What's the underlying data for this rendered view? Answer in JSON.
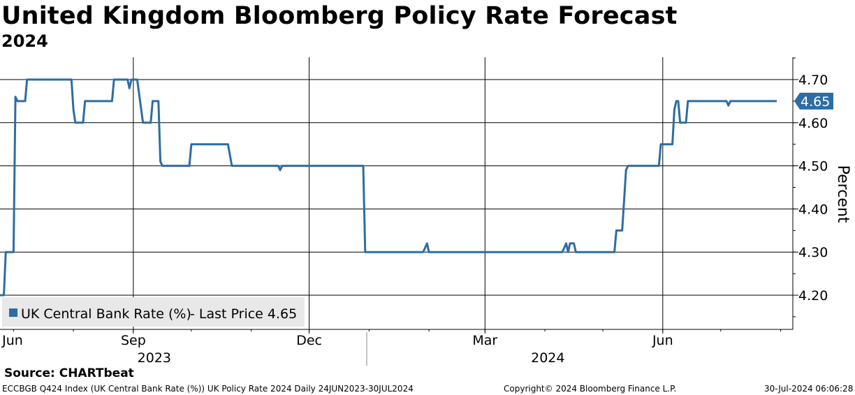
{
  "header": {
    "title": "United Kingdom Bloomberg Policy Rate Forecast",
    "subtitle": "2024"
  },
  "legend": {
    "series_label": "UK Central Bank Rate (%)",
    "price_text": "- Last Price 4.65"
  },
  "footer": {
    "source": "Source:  CHARTbeat",
    "index_info": "ECCBGB Q424 Index (UK Central Bank Rate (%)) UK Policy Rate 2024  Daily 24JUN2023-30JUL2024",
    "copyright": "Copyright© 2024 Bloomberg Finance L.P.",
    "timestamp": "30-Jul-2024 06:06:28"
  },
  "colors": {
    "series": "#2e6ca4",
    "grid": "#000000"
  },
  "chart_data": {
    "type": "line",
    "title": "United Kingdom Bloomberg Policy Rate Forecast",
    "subtitle": "2024",
    "xlabel": "",
    "ylabel": "Percent",
    "x_start": "2023-06-24",
    "x_end": "2024-07-30",
    "ylim": [
      4.12,
      4.75
    ],
    "y_ticks": [
      4.2,
      4.3,
      4.4,
      4.5,
      4.6,
      4.7
    ],
    "y_tick_labels": [
      "4.20",
      "4.30",
      "4.40",
      "4.50",
      "4.60",
      "4.70"
    ],
    "x_ticks": [
      {
        "label": "Jun",
        "date": "2023-06-01"
      },
      {
        "label": "Sep",
        "date": "2023-09-01"
      },
      {
        "label": "Dec",
        "date": "2023-12-01"
      },
      {
        "label": "Mar",
        "date": "2024-03-01"
      },
      {
        "label": "Jun",
        "date": "2024-06-01"
      }
    ],
    "year_labels": [
      {
        "label": "2023",
        "date": "2023-09-01"
      },
      {
        "label": "2024",
        "date": "2024-03-01"
      }
    ],
    "last_value": 4.65,
    "last_value_label": "4.65",
    "series": [
      {
        "name": "UK Central Bank Rate (%)",
        "points": [
          [
            "2023-06-24",
            4.2
          ],
          [
            "2023-06-26",
            4.2
          ],
          [
            "2023-06-27",
            4.3
          ],
          [
            "2023-07-01",
            4.3
          ],
          [
            "2023-07-02",
            4.66
          ],
          [
            "2023-07-03",
            4.65
          ],
          [
            "2023-07-07",
            4.65
          ],
          [
            "2023-07-08",
            4.7
          ],
          [
            "2023-07-31",
            4.7
          ],
          [
            "2023-08-01",
            4.63
          ],
          [
            "2023-08-02",
            4.6
          ],
          [
            "2023-08-06",
            4.6
          ],
          [
            "2023-08-07",
            4.65
          ],
          [
            "2023-08-21",
            4.65
          ],
          [
            "2023-08-22",
            4.7
          ],
          [
            "2023-08-29",
            4.7
          ],
          [
            "2023-08-30",
            4.68
          ],
          [
            "2023-08-31",
            4.7
          ],
          [
            "2023-09-03",
            4.7
          ],
          [
            "2023-09-06",
            4.6
          ],
          [
            "2023-09-10",
            4.6
          ],
          [
            "2023-09-11",
            4.65
          ],
          [
            "2023-09-14",
            4.65
          ],
          [
            "2023-09-15",
            4.51
          ],
          [
            "2023-09-16",
            4.5
          ],
          [
            "2023-09-30",
            4.5
          ],
          [
            "2023-10-01",
            4.55
          ],
          [
            "2023-10-20",
            4.55
          ],
          [
            "2023-10-22",
            4.5
          ],
          [
            "2023-11-15",
            4.5
          ],
          [
            "2023-11-16",
            4.49
          ],
          [
            "2023-11-17",
            4.5
          ],
          [
            "2023-12-29",
            4.5
          ],
          [
            "2023-12-30",
            4.3
          ],
          [
            "2024-01-29",
            4.3
          ],
          [
            "2024-01-31",
            4.32
          ],
          [
            "2024-02-01",
            4.3
          ],
          [
            "2024-04-10",
            4.3
          ],
          [
            "2024-04-12",
            4.32
          ],
          [
            "2024-04-13",
            4.3
          ],
          [
            "2024-04-14",
            4.32
          ],
          [
            "2024-04-16",
            4.32
          ],
          [
            "2024-04-17",
            4.3
          ],
          [
            "2024-05-07",
            4.3
          ],
          [
            "2024-05-08",
            4.35
          ],
          [
            "2024-05-11",
            4.35
          ],
          [
            "2024-05-13",
            4.49
          ],
          [
            "2024-05-14",
            4.5
          ],
          [
            "2024-05-30",
            4.5
          ],
          [
            "2024-05-31",
            4.55
          ],
          [
            "2024-06-06",
            4.55
          ],
          [
            "2024-06-07",
            4.63
          ],
          [
            "2024-06-08",
            4.65
          ],
          [
            "2024-06-09",
            4.65
          ],
          [
            "2024-06-10",
            4.6
          ],
          [
            "2024-06-13",
            4.6
          ],
          [
            "2024-06-14",
            4.65
          ],
          [
            "2024-07-04",
            4.65
          ],
          [
            "2024-07-05",
            4.64
          ],
          [
            "2024-07-06",
            4.65
          ],
          [
            "2024-07-30",
            4.65
          ]
        ]
      }
    ]
  }
}
